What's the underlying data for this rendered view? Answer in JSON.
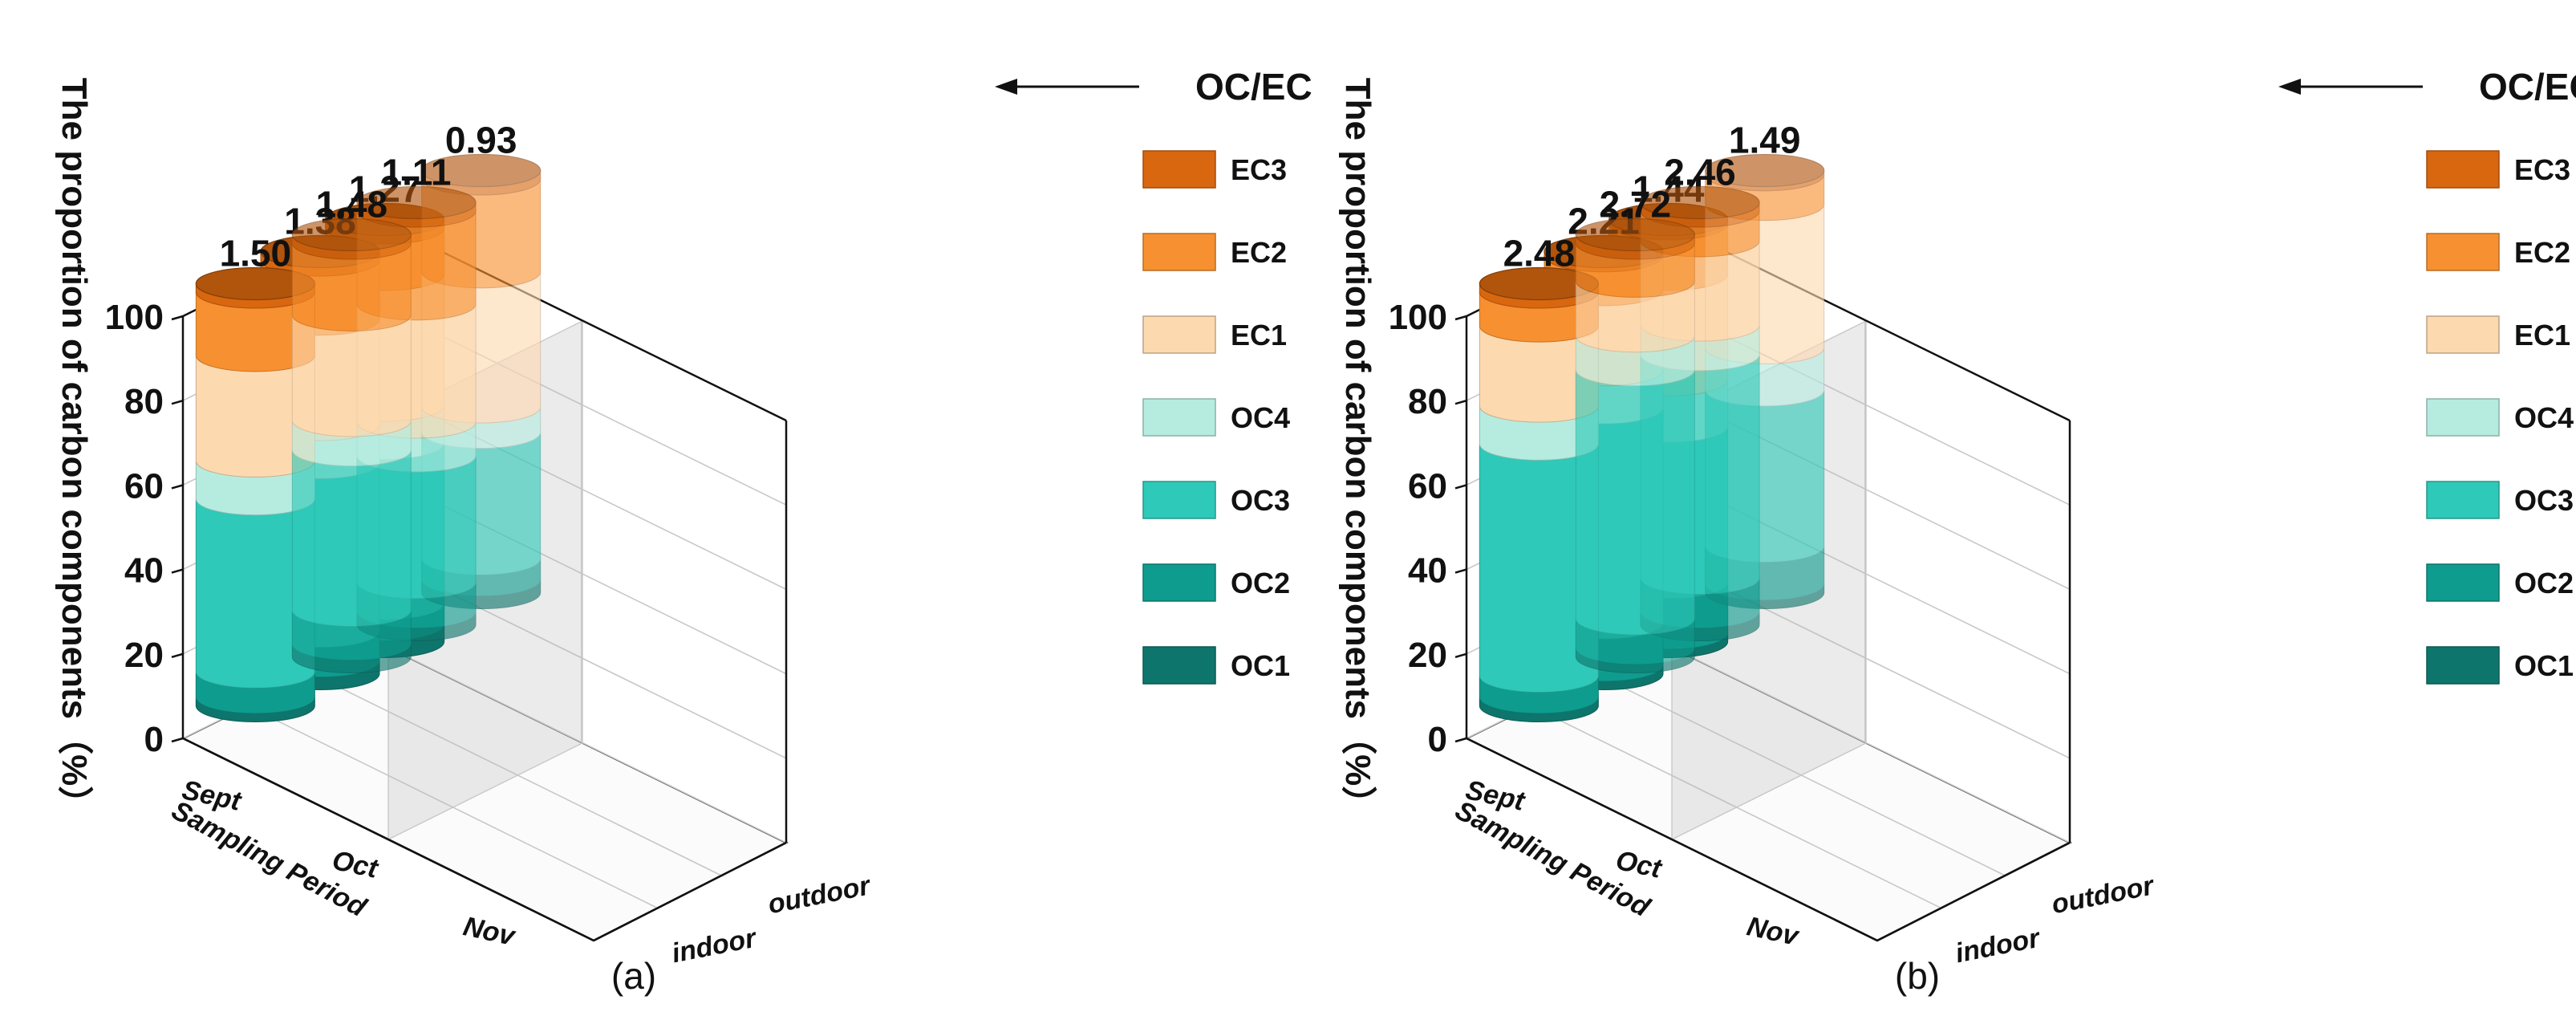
{
  "chart_data": [
    {
      "type": "bar",
      "panel_label": "(a)",
      "ylabel": "The proportion of carbon components（%）",
      "yticks": [
        0,
        20,
        40,
        60,
        80,
        100
      ],
      "ylim": [
        0,
        100
      ],
      "periods": [
        "Sept",
        "Oct",
        "Nov"
      ],
      "period_axis_label": "Sampling Period",
      "locations": [
        "indoor",
        "outdoor"
      ],
      "annotation": "OC/EC",
      "components": [
        "OC1",
        "OC2",
        "OC3",
        "OC4",
        "EC1",
        "EC2",
        "EC3"
      ],
      "bars": [
        {
          "period": "Sept",
          "location": "indoor",
          "oc_ec": "1.50",
          "values": [
            2,
            6,
            41,
            9,
            25,
            15,
            2
          ]
        },
        {
          "period": "Oct",
          "location": "indoor",
          "oc_ec": "1.38",
          "values": [
            3,
            7,
            40,
            9,
            25,
            14,
            2
          ]
        },
        {
          "period": "Nov",
          "location": "indoor",
          "oc_ec": "1.27",
          "values": [
            4,
            5,
            38,
            9,
            31,
            11,
            2
          ]
        },
        {
          "period": "Sept",
          "location": "outdoor",
          "oc_ec": "1.48",
          "values": [
            3,
            8,
            38,
            7,
            25,
            17,
            2
          ]
        },
        {
          "period": "Oct",
          "location": "outdoor",
          "oc_ec": "1.11",
          "values": [
            3,
            7,
            30,
            8,
            28,
            22,
            2
          ]
        },
        {
          "period": "Nov",
          "location": "outdoor",
          "oc_ec": "0.93",
          "values": [
            3,
            5,
            30,
            6,
            32,
            22,
            2
          ]
        }
      ]
    },
    {
      "type": "bar",
      "panel_label": "(b)",
      "ylabel": "The proportion of carbon components（%）",
      "yticks": [
        0,
        20,
        40,
        60,
        80,
        100
      ],
      "ylim": [
        0,
        100
      ],
      "periods": [
        "Sept",
        "Oct",
        "Nov"
      ],
      "period_axis_label": "Sampling Period",
      "locations": [
        "indoor",
        "outdoor"
      ],
      "annotation": "OC/EC",
      "components": [
        "OC1",
        "OC2",
        "OC3",
        "OC4",
        "EC1",
        "EC2",
        "EC3"
      ],
      "bars": [
        {
          "period": "Sept",
          "location": "indoor",
          "oc_ec": "2.48",
          "values": [
            2,
            5,
            55,
            9,
            19,
            8,
            2
          ]
        },
        {
          "period": "Oct",
          "location": "indoor",
          "oc_ec": "2.21",
          "values": [
            2,
            10,
            51,
            9,
            19,
            8,
            1
          ]
        },
        {
          "period": "Nov",
          "location": "indoor",
          "oc_ec": "1.44",
          "values": [
            2,
            12,
            37,
            11,
            25,
            12,
            1
          ]
        },
        {
          "period": "Sept",
          "location": "outdoor",
          "oc_ec": "2.72",
          "values": [
            2,
            7,
            59,
            8,
            13,
            9,
            2
          ]
        },
        {
          "period": "Oct",
          "location": "outdoor",
          "oc_ec": "2.46",
          "values": [
            3,
            8,
            53,
            7,
            20,
            7,
            2
          ]
        },
        {
          "period": "Nov",
          "location": "outdoor",
          "oc_ec": "1.49",
          "values": [
            2,
            9,
            37,
            10,
            34,
            7,
            1
          ]
        }
      ]
    }
  ],
  "colors": {
    "OC1": "#0e756c",
    "OC2": "#0e9c8e",
    "OC3": "#2ec9b8",
    "OC4": "#b6ece0",
    "EC1": "#fdd9b0",
    "EC2": "#f79030",
    "EC3": "#d8670f"
  }
}
